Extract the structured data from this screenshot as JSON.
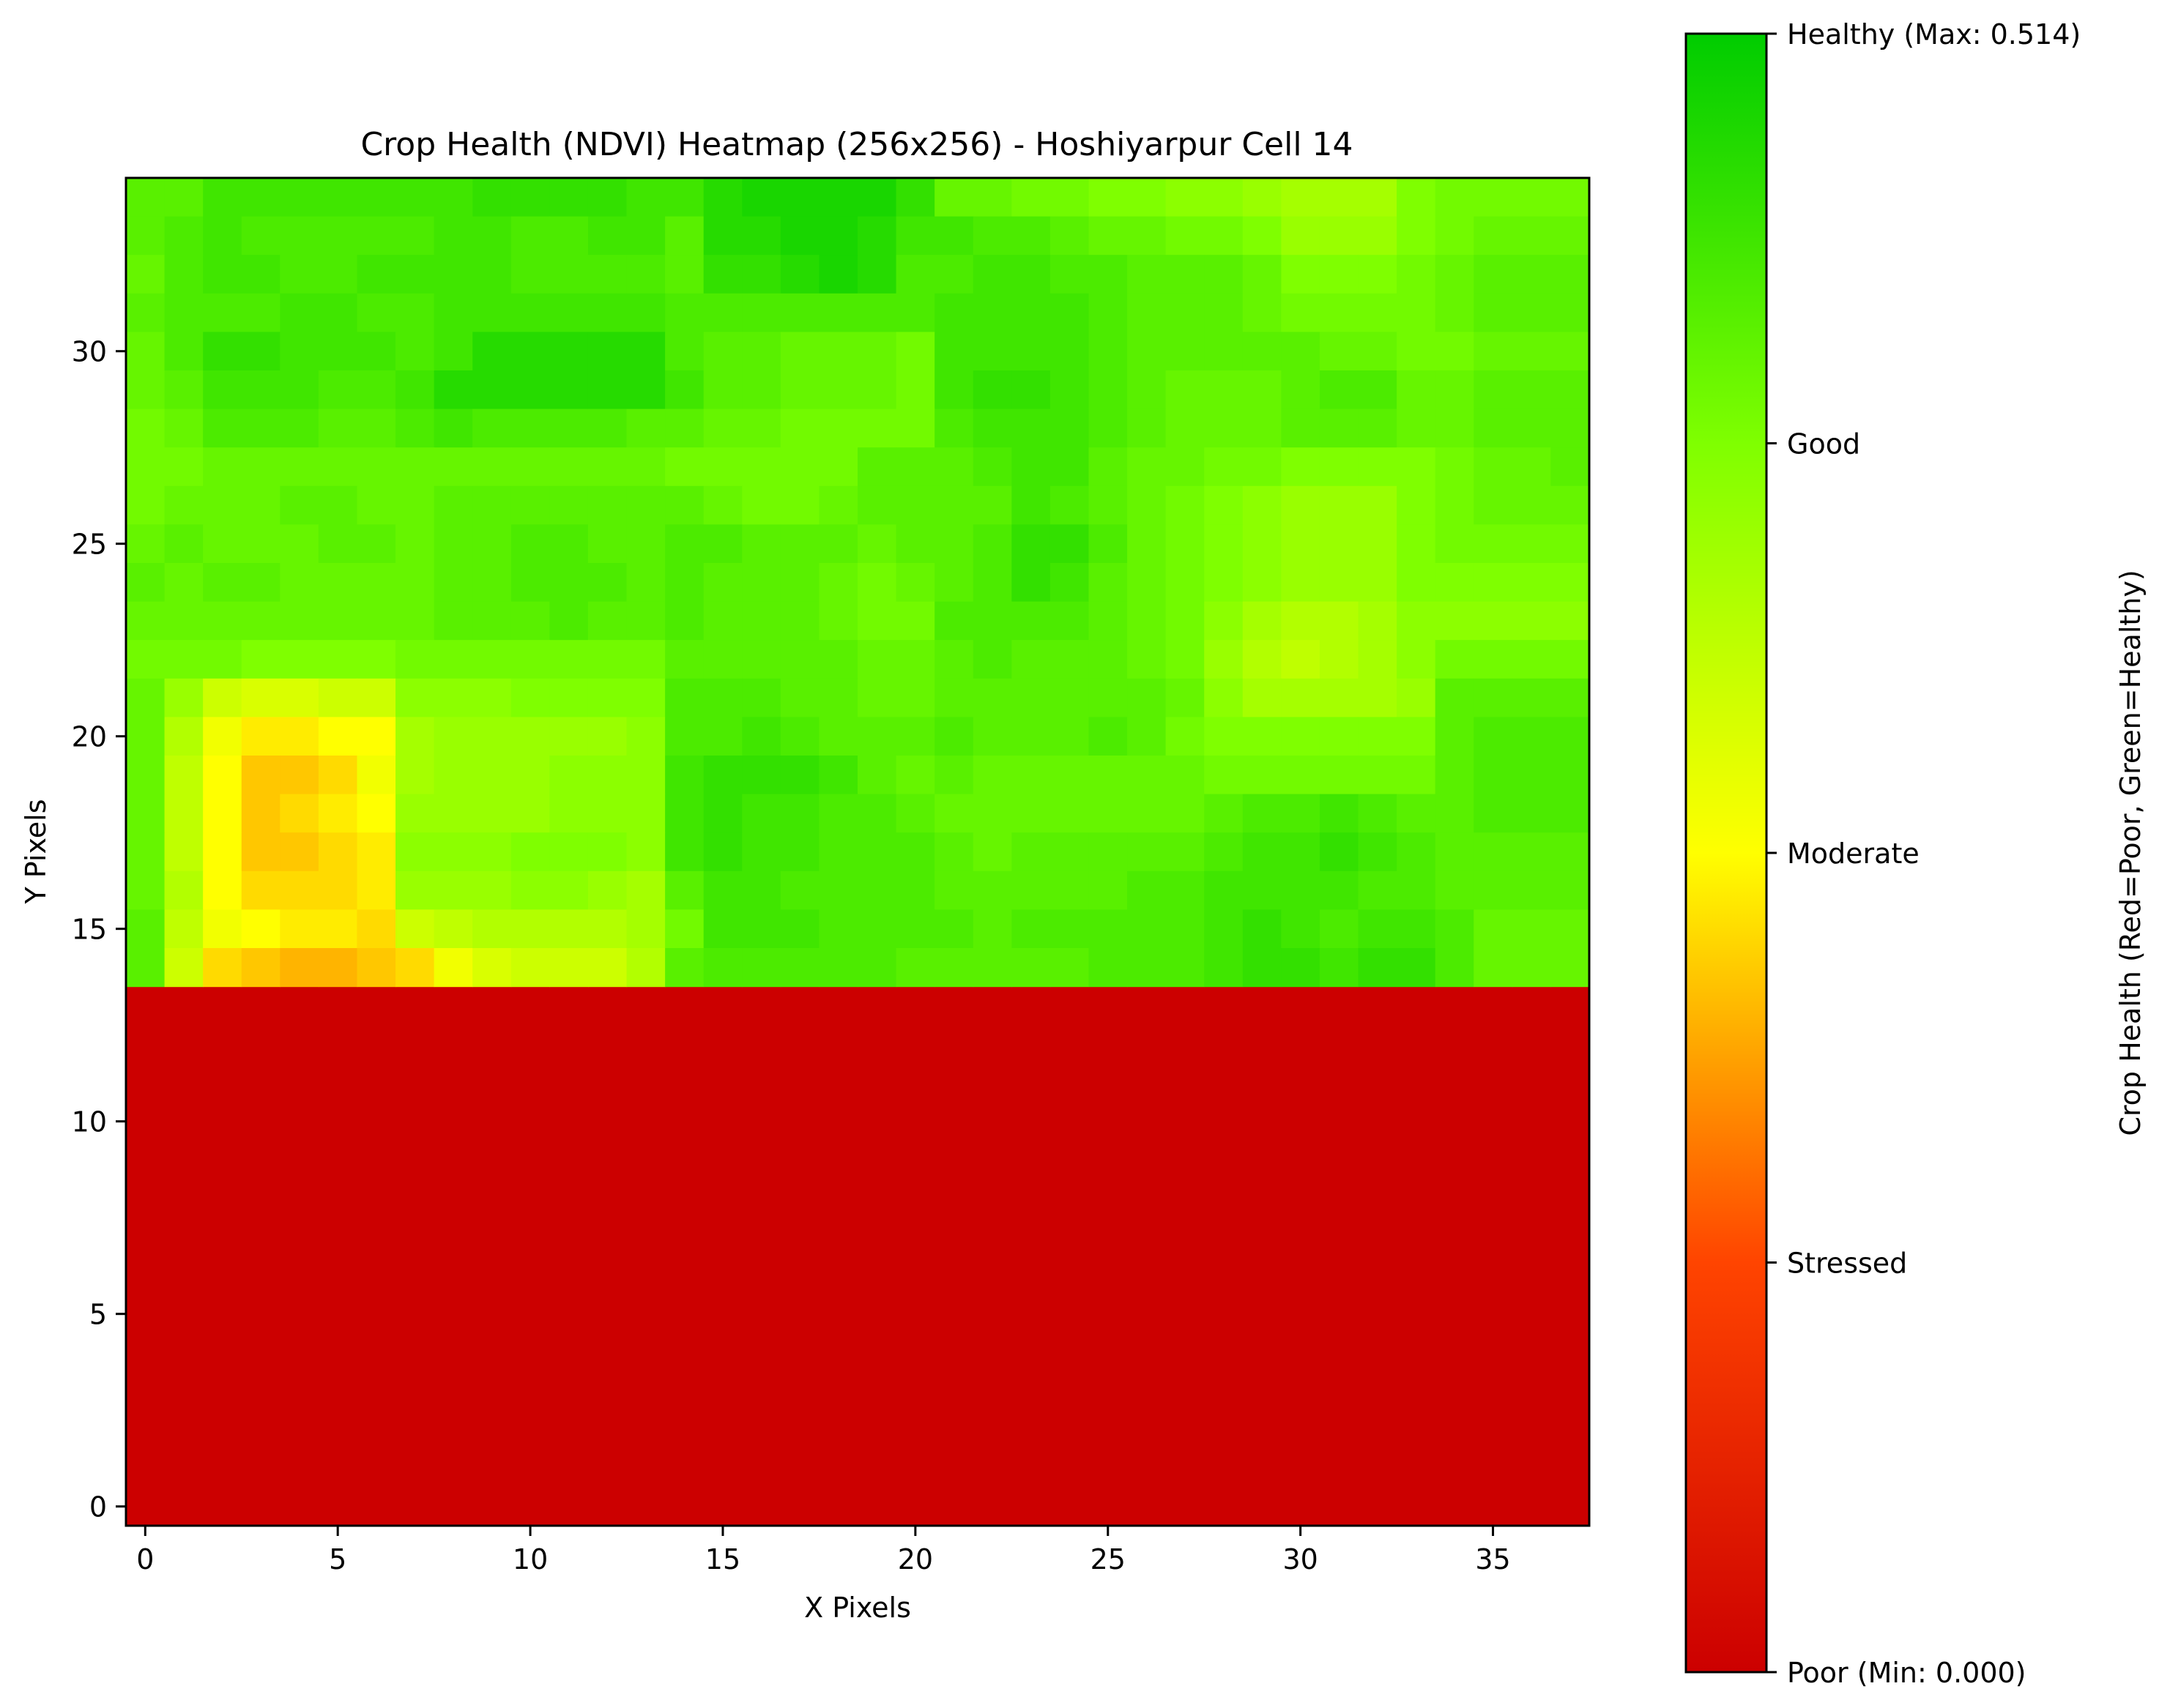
{
  "chart_data": {
    "type": "heatmap",
    "title": "Crop Health (NDVI) Heatmap (256x256) - Hoshiyarpur Cell 14",
    "xlabel": "X Pixels",
    "ylabel": "Y Pixels",
    "x_ticks": [
      0,
      5,
      10,
      15,
      20,
      25,
      30,
      35
    ],
    "y_ticks": [
      0,
      5,
      10,
      15,
      20,
      25,
      30
    ],
    "xlim": [
      -0.5,
      37.5
    ],
    "ylim": [
      -0.5,
      34.5
    ],
    "grid": false,
    "colormap": [
      "#cc0000",
      "#ff4400",
      "#ffff00",
      "#7fff00",
      "#00cc00"
    ],
    "colorbar": {
      "label": "Crop Health (Red=Poor, Green=Healthy)",
      "vmin": 0.0,
      "vmax": 0.514,
      "tick_labels": [
        "Poor (Min: 0.000)",
        "Stressed",
        "Moderate",
        "Good",
        "Healthy (Max: 0.514)"
      ]
    },
    "poor_rows": {
      "from": 0,
      "to": 13,
      "value": 0.0
    },
    "ndvi_rows_top_to_bottom": [
      "ZZZZZZZZZZZZZZZZZZZZZZZZZZZZZZZZZZZZZZ",
      "YXQQQSQUUURRRSSWkkmmmiTZZZZZZZZZZZZZZZ",
      "YXWUVVVVSUUUVRRWfgppprjZZZZZZZZZZZZZZZ",
      "YTUQPVTTRQOOPVWWVVVVWYWSSVVZZZZZZZZZZZ",
      "YWQQRNUSONNMNNPTSSVUTUUUUSSZZZZZZZZZZZ",
      "ZYUUUUUYRXPPPPSSZZZSTUXZSVYWWVVYZZZZZZ",
      "ZZZZZZZZZZZZZZZZZZZZZZZZZZZZZZZZZZZZZZ",
      "ZZZZZZZZZZZZZZZZZZZZZZZZZZZZZZZZZZZZZZ",
      "ZZZZZZZZZZZZZZZZZZZZZZZZZZZZZZZZZZZZZZ",
      "ZZZZZZZZZZZZZZZZZZZZZZZZZZZZZZZZZZZZZZ",
      "ZZZZZZZZZZZZZZZZZZZZZZZZZZZZZZZZZZZZZZ",
      "ZZZZZZZZZZZZZZZZZZZZZZZZZZZZZZZZZZZZZZ",
      "ZZZZZZZZZZZZZZZZZZZZZZZZZZZZZZZZZZZZZZ",
      "ZZZZZZZZZZZZZZZZZZZZZZZZZZZZZZZZZZZZZZ",
      "ZZZZZZZZZZZZZZZZZZZZZZZZZZZZZZZZZZZZZZ",
      "ZZZZZZZZZZZZZZZZZZZZZZZZZZZZZZZZZZZZZZ",
      "ZZZZZZZZZZZZZZZZZZZZZZZZZZZZZZZZZZZZZZ",
      "ZZZZZZZZZZZZZZZZZZZZZZZZZZZZZZZZZZZZZZ",
      "ZZZZZZZZZZZZZZZZZZZZZZZZZZZZZZZZZZZZZZ",
      "ZZZZZZZZZZZZZZZZZZZZZZZZZZZZZZZZZZZZZZ",
      "ZZZZZZZZZZZZZZZZZZZZZZZZZZZZZZZZZZZZZZ",
      "ZZZZZZZZZZZZZZZZZZZZZZZZZZZZZZZZZZZZZZ",
      "ZZZZZZZZZZZZZZZZZZZZZZZZZZZZZZZZZZZZZZ",
      "ZZZZZZZZZZZZZZZZZZZZZZZZZZZZZZZZZZZZZZ",
      "ZZZZZZZZZZZZZZZZZZZZZZZZZZZZZZZZZZZZZZ",
      "ZZZZZZZZZZZZZZZZZZZZZZZZZZZZZZZZZZZZZZ",
      "ZZZZZZZZZZZZZZZZZZZZZZZZZZZZZZZZZZZZZZ",
      "ZZZZZZZZZZZZZZZZZZZZZZZZZZZZZZZZZZZZZZ",
      "ZZZZZZZZZZZZZZZZZZZZZZZZZZZZZZZZZZZZZZ",
      "ZZZZZZZZZZZZZZZZZZZZZZZZZZZZZZZZZZZZZZ",
      "ZZZZZZZZZZZZZZZZZZZZZZZZZZZZZZZZZZZZZZ",
      "ZZZZZZZZZZZZZZZZZZZZZZZZZZZZZZZZZZZZZZ",
      "ZZZZZZZZZZZZZZZZZZZZZZZZZZZZZZZZZZZZZZ",
      "ZZZZZZZZZZZZZZZZZZZZZZZZZZZZZZZZZZZZZZ",
      "ZZZZZZZZZZZZZZZZZZZZZZZZZZZZZZZZZZZZZZ"
    ],
    "ndvi_grid": {
      "encoding": "rows listed from y=34 (top) down to y=14; 38 columns x=0..37; value = 0.514 * code / 40",
      "codes": [
        [
          33,
          33,
          35,
          35,
          35,
          35,
          35,
          35,
          35,
          36,
          36,
          36,
          36,
          35,
          35,
          37,
          38,
          38,
          38,
          38,
          36,
          32,
          32,
          31,
          31,
          30,
          30,
          29,
          29,
          28,
          27,
          27,
          27,
          30,
          31,
          31,
          31,
          31
        ],
        [
          33,
          34,
          35,
          34,
          34,
          34,
          34,
          34,
          35,
          35,
          34,
          34,
          35,
          35,
          33,
          37,
          37,
          38,
          38,
          37,
          35,
          35,
          34,
          34,
          33,
          32,
          32,
          31,
          31,
          30,
          28,
          28,
          28,
          30,
          31,
          32,
          32,
          32
        ],
        [
          32,
          34,
          35,
          35,
          34,
          34,
          35,
          35,
          35,
          35,
          34,
          34,
          34,
          34,
          33,
          36,
          36,
          37,
          38,
          37,
          34,
          34,
          35,
          35,
          34,
          34,
          33,
          33,
          33,
          32,
          30,
          30,
          30,
          31,
          32,
          33,
          33,
          33
        ],
        [
          33,
          34,
          34,
          34,
          35,
          35,
          34,
          34,
          35,
          35,
          35,
          35,
          35,
          35,
          34,
          34,
          34,
          34,
          34,
          34,
          34,
          35,
          35,
          35,
          35,
          34,
          33,
          33,
          33,
          32,
          31,
          31,
          31,
          31,
          32,
          33,
          33,
          33
        ],
        [
          32,
          34,
          36,
          36,
          35,
          35,
          35,
          34,
          35,
          37,
          37,
          37,
          37,
          37,
          34,
          33,
          33,
          32,
          32,
          32,
          31,
          35,
          35,
          35,
          35,
          34,
          33,
          33,
          33,
          33,
          33,
          32,
          32,
          31,
          31,
          32,
          32,
          32
        ],
        [
          32,
          33,
          35,
          35,
          35,
          34,
          34,
          35,
          37,
          37,
          37,
          37,
          37,
          37,
          35,
          33,
          33,
          32,
          32,
          32,
          31,
          35,
          36,
          36,
          35,
          34,
          33,
          32,
          32,
          32,
          33,
          34,
          34,
          32,
          32,
          33,
          33,
          33
        ],
        [
          31,
          32,
          34,
          34,
          34,
          33,
          33,
          34,
          35,
          34,
          34,
          34,
          34,
          33,
          33,
          32,
          32,
          31,
          31,
          31,
          31,
          34,
          35,
          35,
          35,
          34,
          33,
          32,
          32,
          32,
          33,
          33,
          33,
          32,
          32,
          33,
          33,
          33
        ],
        [
          31,
          31,
          32,
          32,
          32,
          32,
          32,
          32,
          32,
          32,
          32,
          32,
          32,
          32,
          31,
          31,
          31,
          31,
          31,
          33,
          33,
          33,
          34,
          35,
          35,
          33,
          32,
          32,
          31,
          31,
          30,
          30,
          30,
          30,
          31,
          32,
          32,
          33
        ],
        [
          31,
          32,
          32,
          32,
          33,
          33,
          32,
          32,
          33,
          33,
          33,
          33,
          33,
          33,
          33,
          32,
          31,
          31,
          32,
          33,
          33,
          33,
          33,
          35,
          34,
          33,
          32,
          31,
          30,
          29,
          28,
          28,
          28,
          30,
          31,
          32,
          32,
          32
        ],
        [
          32,
          33,
          32,
          32,
          32,
          33,
          33,
          32,
          33,
          33,
          34,
          34,
          33,
          33,
          34,
          34,
          33,
          33,
          33,
          32,
          33,
          33,
          34,
          36,
          36,
          34,
          32,
          31,
          30,
          29,
          28,
          28,
          28,
          30,
          31,
          31,
          31,
          31
        ],
        [
          33,
          32,
          33,
          33,
          32,
          32,
          32,
          32,
          33,
          33,
          34,
          34,
          34,
          33,
          34,
          33,
          33,
          33,
          32,
          31,
          32,
          33,
          34,
          36,
          35,
          33,
          32,
          31,
          30,
          29,
          28,
          28,
          28,
          30,
          30,
          30,
          30,
          30
        ],
        [
          32,
          32,
          32,
          32,
          32,
          32,
          32,
          32,
          33,
          33,
          33,
          34,
          33,
          33,
          34,
          33,
          33,
          33,
          32,
          31,
          31,
          34,
          34,
          34,
          34,
          33,
          32,
          31,
          29,
          27,
          26,
          26,
          27,
          29,
          29,
          29,
          29,
          29
        ],
        [
          31,
          31,
          31,
          30,
          30,
          30,
          30,
          31,
          31,
          31,
          31,
          31,
          31,
          31,
          33,
          33,
          33,
          33,
          33,
          32,
          32,
          33,
          34,
          33,
          33,
          33,
          32,
          31,
          28,
          26,
          25,
          26,
          27,
          29,
          31,
          31,
          31,
          31
        ],
        [
          32,
          28,
          24,
          23,
          23,
          24,
          24,
          29,
          29,
          29,
          30,
          30,
          30,
          30,
          34,
          34,
          34,
          33,
          33,
          32,
          32,
          33,
          33,
          33,
          33,
          33,
          33,
          32,
          29,
          27,
          27,
          27,
          27,
          28,
          33,
          33,
          33,
          33
        ],
        [
          32,
          26,
          21,
          19,
          19,
          20,
          20,
          27,
          28,
          28,
          28,
          28,
          28,
          29,
          34,
          34,
          35,
          34,
          33,
          33,
          33,
          34,
          33,
          33,
          33,
          34,
          33,
          31,
          30,
          30,
          30,
          30,
          30,
          30,
          33,
          34,
          34,
          34
        ],
        [
          32,
          25,
          20,
          17,
          17,
          18,
          21,
          27,
          28,
          28,
          28,
          29,
          29,
          29,
          35,
          36,
          36,
          36,
          35,
          33,
          32,
          33,
          32,
          32,
          32,
          32,
          32,
          32,
          31,
          31,
          31,
          31,
          31,
          31,
          33,
          34,
          34,
          34
        ],
        [
          32,
          25,
          20,
          17,
          18,
          19,
          20,
          28,
          28,
          28,
          28,
          29,
          29,
          29,
          35,
          36,
          35,
          35,
          34,
          34,
          33,
          32,
          32,
          32,
          32,
          32,
          32,
          32,
          33,
          34,
          34,
          35,
          34,
          33,
          33,
          34,
          34,
          34
        ],
        [
          32,
          25,
          20,
          17,
          17,
          18,
          19,
          29,
          29,
          29,
          30,
          30,
          30,
          29,
          35,
          36,
          35,
          35,
          34,
          34,
          34,
          33,
          32,
          33,
          33,
          33,
          33,
          33,
          34,
          35,
          35,
          36,
          35,
          34,
          33,
          33,
          33,
          33
        ],
        [
          32,
          26,
          20,
          18,
          18,
          18,
          19,
          28,
          28,
          28,
          29,
          29,
          28,
          27,
          33,
          35,
          35,
          34,
          34,
          34,
          34,
          33,
          33,
          33,
          33,
          33,
          34,
          34,
          35,
          35,
          35,
          35,
          34,
          34,
          33,
          33,
          33,
          33
        ],
        [
          33,
          25,
          21,
          20,
          19,
          19,
          18,
          24,
          25,
          26,
          26,
          26,
          26,
          27,
          31,
          35,
          35,
          35,
          34,
          34,
          34,
          34,
          33,
          34,
          34,
          34,
          34,
          34,
          35,
          36,
          35,
          34,
          35,
          35,
          34,
          32,
          32,
          32
        ],
        [
          33,
          24,
          18,
          17,
          16,
          16,
          17,
          18,
          21,
          23,
          24,
          24,
          24,
          26,
          33,
          34,
          34,
          34,
          34,
          34,
          33,
          33,
          33,
          33,
          33,
          34,
          34,
          34,
          35,
          36,
          36,
          35,
          36,
          36,
          34,
          32,
          32,
          32
        ]
      ]
    }
  }
}
